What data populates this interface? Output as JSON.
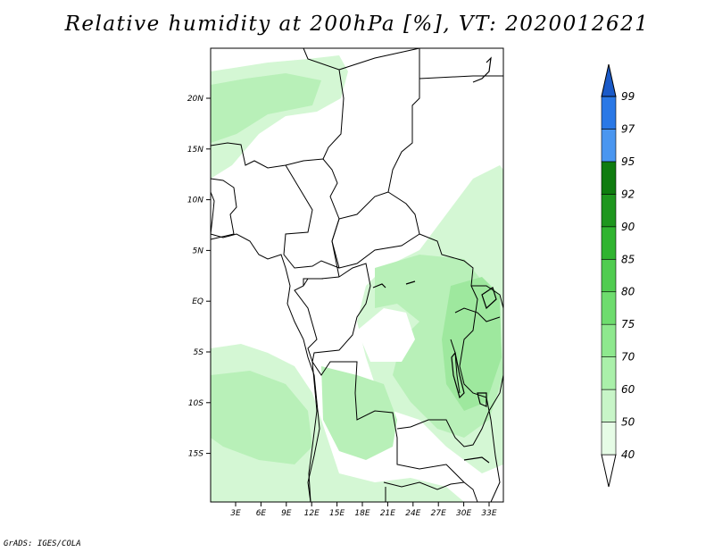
{
  "title": "Relative humidity at 200hPa [%], VT: 2020012621",
  "credit": "GrADS: IGES/COLA",
  "map": {
    "lat_ticks": [
      "20N",
      "15N",
      "10N",
      "5N",
      "EQ",
      "5S",
      "10S",
      "15S"
    ],
    "lon_ticks": [
      "3E",
      "6E",
      "9E",
      "12E",
      "15E",
      "18E",
      "21E",
      "24E",
      "27E",
      "30E",
      "33E"
    ]
  },
  "colorbar": {
    "labels": [
      "40",
      "50",
      "60",
      "70",
      "75",
      "80",
      "85",
      "90",
      "92",
      "95",
      "97",
      "99"
    ],
    "colors": [
      "#ffffff",
      "#e6fce6",
      "#c8f5c8",
      "#aaf0aa",
      "#8ee88e",
      "#6edc6e",
      "#50cc50",
      "#30b430",
      "#1e961e",
      "#0f7c0f",
      "#4a96f0",
      "#2a78e6",
      "#1a5ac8"
    ]
  }
}
